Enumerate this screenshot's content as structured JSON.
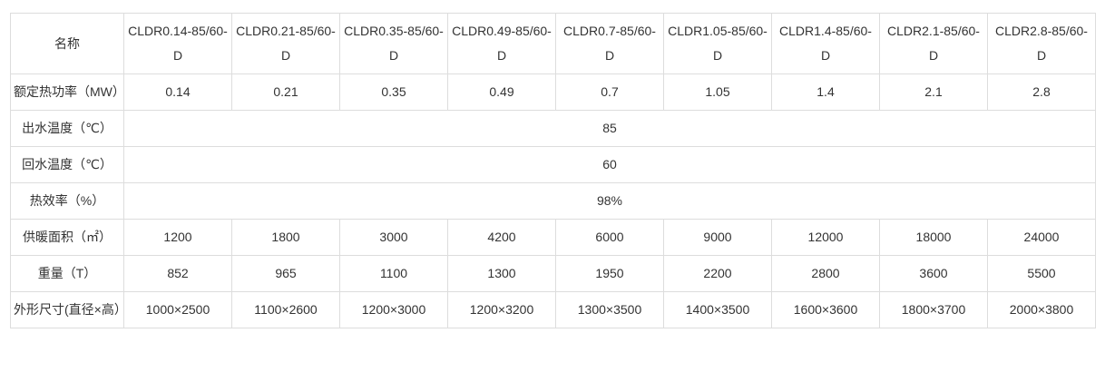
{
  "table": {
    "corner_label": "名称",
    "models": [
      "CLDR0.14-85/60-D",
      "CLDR0.21-85/60-D",
      "CLDR0.35-85/60-D",
      "CLDR0.49-85/60-D",
      "CLDR0.7-85/60-D",
      "CLDR1.05-85/60-D",
      "CLDR1.4-85/60-D",
      "CLDR2.1-85/60-D",
      "CLDR2.8-85/60-D"
    ],
    "rows": {
      "rated_power": {
        "label": "额定热功率（MW）",
        "values": [
          "0.14",
          "0.21",
          "0.35",
          "0.49",
          "0.7",
          "1.05",
          "1.4",
          "2.1",
          "2.8"
        ]
      },
      "outlet_temp": {
        "label": "出水温度（℃）",
        "value": "85"
      },
      "return_temp": {
        "label": "回水温度（℃）",
        "value": "60"
      },
      "thermal_efficiency": {
        "label": "热效率（%）",
        "value": "98%"
      },
      "heating_area": {
        "label": "供暖面积（㎡）",
        "values": [
          "1200",
          "1800",
          "3000",
          "4200",
          "6000",
          "9000",
          "12000",
          "18000",
          "24000"
        ]
      },
      "weight": {
        "label": "重量（T）",
        "values": [
          "852",
          "965",
          "1100",
          "1300",
          "1950",
          "2200",
          "2800",
          "3600",
          "5500"
        ]
      },
      "dimensions": {
        "label": "外形尺寸(直径×高）",
        "values": [
          "1000×2500",
          "1100×2600",
          "1200×3000",
          "1200×3200",
          "1300×3500",
          "1400×3500",
          "1600×3600",
          "1800×3700",
          "2000×3800"
        ]
      }
    },
    "colors": {
      "border": "#dddddd",
      "text": "#333333",
      "background": "#ffffff"
    }
  }
}
